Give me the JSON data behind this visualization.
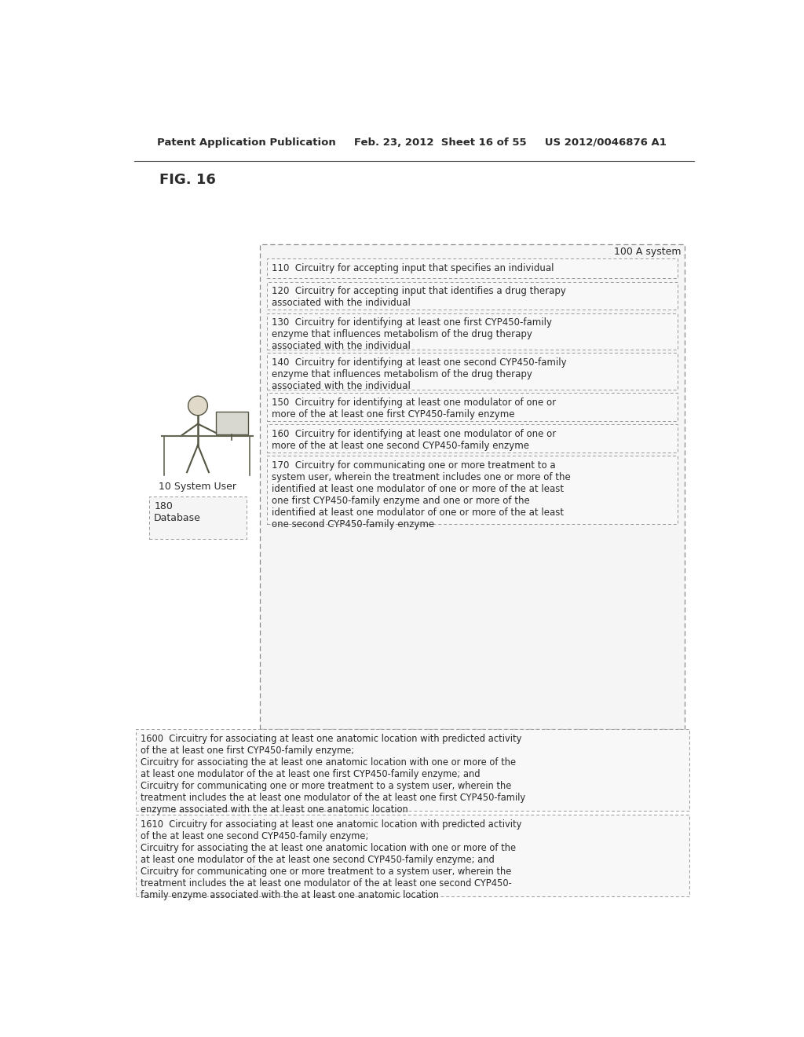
{
  "bg_color": "#ffffff",
  "header_text": "Patent Application Publication     Feb. 23, 2012  Sheet 16 of 55     US 2012/0046876 A1",
  "fig_label": "FIG. 16",
  "system_label": "100 A system",
  "system_user_label": "10 System User",
  "database_label": "180\nDatabase",
  "boxes_right": [
    {
      "id": "110",
      "text": "110  Circuitry for accepting input that specifies an individual"
    },
    {
      "id": "120",
      "text": "120  Circuitry for accepting input that identifies a drug therapy\nassociated with the individual"
    },
    {
      "id": "130",
      "text": "130  Circuitry for identifying at least one first CYP450-family\nenzyme that influences metabolism of the drug therapy\nassociated with the individual"
    },
    {
      "id": "140",
      "text": "140  Circuitry for identifying at least one second CYP450-family\nenzyme that influences metabolism of the drug therapy\nassociated with the individual"
    },
    {
      "id": "150",
      "text": "150  Circuitry for identifying at least one modulator of one or\nmore of the at least one first CYP450-family enzyme"
    },
    {
      "id": "160",
      "text": "160  Circuitry for identifying at least one modulator of one or\nmore of the at least one second CYP450-family enzyme"
    },
    {
      "id": "170",
      "text": "170  Circuitry for communicating one or more treatment to a\nsystem user, wherein the treatment includes one or more of the\nidentified at least one modulator of one or more of the at least\none first CYP450-family enzyme and one or more of the\nidentified at least one modulator of one or more of the at least\none second CYP450-family enzyme"
    }
  ],
  "box_heights": [
    32,
    46,
    60,
    60,
    46,
    46,
    112
  ],
  "boxes_bottom": [
    {
      "id": "1600",
      "text": "1600  Circuitry for associating at least one anatomic location with predicted activity\nof the at least one first CYP450-family enzyme;\nCircuitry for associating the at least one anatomic location with one or more of the\nat least one modulator of the at least one first CYP450-family enzyme; and\nCircuitry for communicating one or more treatment to a system user, wherein the\ntreatment includes the at least one modulator of the at least one first CYP450-family\nenzyme associated with the at least one anatomic location"
    },
    {
      "id": "1610",
      "text": "1610  Circuitry for associating at least one anatomic location with predicted activity\nof the at least one second CYP450-family enzyme;\nCircuitry for associating the at least one anatomic location with one or more of the\nat least one modulator of the at least one second CYP450-family enzyme; and\nCircuitry for communicating one or more treatment to a system user, wherein the\ntreatment includes the at least one modulator of the at least one second CYP450-\nfamily enzyme associated with the at least one anatomic location"
    }
  ],
  "text_color": "#2a2a2a",
  "box_edge_color": "#999999",
  "box_face_color": "#ffffff",
  "font_size_header": 9.5,
  "font_size_body": 8.5,
  "font_size_fig": 13.0
}
